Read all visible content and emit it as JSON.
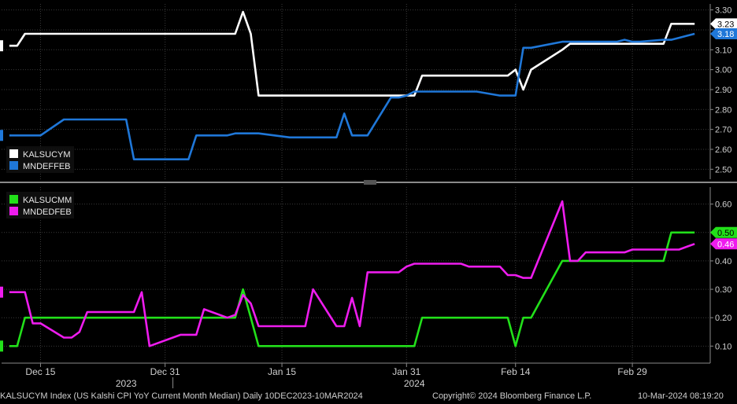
{
  "chart_data": [
    {
      "type": "line",
      "panel": "top",
      "x": [
        "2023-12-11",
        "2023-12-12",
        "2023-12-13",
        "2023-12-14",
        "2023-12-15",
        "2023-12-18",
        "2023-12-19",
        "2023-12-20",
        "2023-12-21",
        "2023-12-22",
        "2023-12-26",
        "2023-12-27",
        "2023-12-28",
        "2023-12-29",
        "2024-01-02",
        "2024-01-03",
        "2024-01-04",
        "2024-01-05",
        "2024-01-08",
        "2024-01-09",
        "2024-01-10",
        "2024-01-11",
        "2024-01-12",
        "2024-01-16",
        "2024-01-17",
        "2024-01-18",
        "2024-01-19",
        "2024-01-22",
        "2024-01-23",
        "2024-01-24",
        "2024-01-25",
        "2024-01-26",
        "2024-01-29",
        "2024-01-30",
        "2024-01-31",
        "2024-02-01",
        "2024-02-02",
        "2024-02-05",
        "2024-02-06",
        "2024-02-07",
        "2024-02-08",
        "2024-02-09",
        "2024-02-12",
        "2024-02-13",
        "2024-02-14",
        "2024-02-15",
        "2024-02-16",
        "2024-02-20",
        "2024-02-21",
        "2024-02-22",
        "2024-02-23",
        "2024-02-26",
        "2024-02-27",
        "2024-02-28",
        "2024-02-29",
        "2024-03-01",
        "2024-03-04",
        "2024-03-05",
        "2024-03-06",
        "2024-03-07",
        "2024-03-08"
      ],
      "series": [
        {
          "name": "KALSUCYM",
          "color": "#ffffff",
          "values": [
            3.12,
            3.12,
            3.18,
            3.18,
            3.18,
            3.18,
            3.18,
            3.18,
            3.18,
            3.18,
            3.18,
            3.18,
            3.18,
            3.18,
            3.18,
            3.18,
            3.18,
            3.18,
            3.18,
            3.18,
            3.29,
            3.18,
            2.87,
            2.87,
            2.87,
            2.87,
            2.87,
            2.87,
            2.87,
            2.87,
            2.87,
            2.87,
            2.87,
            2.87,
            2.87,
            2.87,
            2.97,
            2.97,
            2.97,
            2.97,
            2.97,
            2.97,
            2.97,
            2.97,
            3.0,
            2.9,
            3.0,
            3.1,
            3.13,
            3.13,
            3.13,
            3.13,
            3.13,
            3.13,
            3.13,
            3.13,
            3.13,
            3.23,
            3.23,
            3.23,
            3.23
          ]
        },
        {
          "name": "MNDEFFEB",
          "color": "#1f77d8",
          "values": [
            2.67,
            2.67,
            2.67,
            2.67,
            2.67,
            2.75,
            2.75,
            2.75,
            2.75,
            2.75,
            2.75,
            2.55,
            2.55,
            2.55,
            2.55,
            2.55,
            2.67,
            2.67,
            2.67,
            2.68,
            2.68,
            2.68,
            2.68,
            2.66,
            2.66,
            2.66,
            2.66,
            2.66,
            2.78,
            2.67,
            2.67,
            2.67,
            2.86,
            2.86,
            2.87,
            2.89,
            2.89,
            2.89,
            2.89,
            2.89,
            2.89,
            2.89,
            2.87,
            2.87,
            2.87,
            3.11,
            3.11,
            3.14,
            3.14,
            3.14,
            3.14,
            3.14,
            3.14,
            3.15,
            3.14,
            3.14,
            3.15,
            3.15,
            3.16,
            3.17,
            3.18
          ]
        }
      ],
      "last_values": [
        "3.23",
        "3.18"
      ],
      "ylim": [
        2.45,
        3.33
      ],
      "yticks": [
        "3.30",
        "3.20",
        "3.10",
        "3.00",
        "2.90",
        "2.80",
        "2.70",
        "2.60",
        "2.50"
      ],
      "legend": "bottom-left"
    },
    {
      "type": "line",
      "panel": "bottom",
      "x": [
        "2023-12-11",
        "2023-12-12",
        "2023-12-13",
        "2023-12-14",
        "2023-12-15",
        "2023-12-18",
        "2023-12-19",
        "2023-12-20",
        "2023-12-21",
        "2023-12-22",
        "2023-12-26",
        "2023-12-27",
        "2023-12-28",
        "2023-12-29",
        "2024-01-02",
        "2024-01-03",
        "2024-01-04",
        "2024-01-05",
        "2024-01-08",
        "2024-01-09",
        "2024-01-10",
        "2024-01-11",
        "2024-01-12",
        "2024-01-16",
        "2024-01-17",
        "2024-01-18",
        "2024-01-19",
        "2024-01-22",
        "2024-01-23",
        "2024-01-24",
        "2024-01-25",
        "2024-01-26",
        "2024-01-29",
        "2024-01-30",
        "2024-01-31",
        "2024-02-01",
        "2024-02-02",
        "2024-02-05",
        "2024-02-06",
        "2024-02-07",
        "2024-02-08",
        "2024-02-09",
        "2024-02-12",
        "2024-02-13",
        "2024-02-14",
        "2024-02-15",
        "2024-02-16",
        "2024-02-20",
        "2024-02-21",
        "2024-02-22",
        "2024-02-23",
        "2024-02-26",
        "2024-02-27",
        "2024-02-28",
        "2024-02-29",
        "2024-03-01",
        "2024-03-04",
        "2024-03-05",
        "2024-03-06",
        "2024-03-07",
        "2024-03-08"
      ],
      "series": [
        {
          "name": "KALSUCMM",
          "color": "#22e01a",
          "values": [
            0.1,
            0.1,
            0.2,
            0.2,
            0.2,
            0.2,
            0.2,
            0.2,
            0.2,
            0.2,
            0.2,
            0.2,
            0.2,
            0.2,
            0.2,
            0.2,
            0.2,
            0.2,
            0.2,
            0.2,
            0.3,
            0.2,
            0.1,
            0.1,
            0.1,
            0.1,
            0.1,
            0.1,
            0.1,
            0.1,
            0.1,
            0.1,
            0.1,
            0.1,
            0.1,
            0.1,
            0.2,
            0.2,
            0.2,
            0.2,
            0.2,
            0.2,
            0.2,
            0.2,
            0.1,
            0.2,
            0.2,
            0.4,
            0.4,
            0.4,
            0.4,
            0.4,
            0.4,
            0.4,
            0.4,
            0.4,
            0.4,
            0.5,
            0.5,
            0.5,
            0.5
          ]
        },
        {
          "name": "MNDEDFEB",
          "color": "#ee1cee",
          "values": [
            0.29,
            0.29,
            0.29,
            0.18,
            0.18,
            0.13,
            0.13,
            0.15,
            0.22,
            0.22,
            0.22,
            0.22,
            0.29,
            0.1,
            0.14,
            0.14,
            0.14,
            0.23,
            0.2,
            0.21,
            0.28,
            0.25,
            0.17,
            0.17,
            0.17,
            0.17,
            0.3,
            0.17,
            0.17,
            0.27,
            0.17,
            0.36,
            0.36,
            0.36,
            0.38,
            0.39,
            0.39,
            0.39,
            0.39,
            0.39,
            0.38,
            0.38,
            0.38,
            0.35,
            0.35,
            0.34,
            0.34,
            0.61,
            0.4,
            0.4,
            0.43,
            0.43,
            0.43,
            0.43,
            0.44,
            0.44,
            0.44,
            0.44,
            0.44,
            0.45,
            0.46
          ]
        }
      ],
      "last_values": [
        "0.50",
        "0.46"
      ],
      "ylim": [
        0.04,
        0.66
      ],
      "yticks": [
        "0.60",
        "0.50",
        "0.40",
        "0.30",
        "0.20",
        "0.10"
      ],
      "legend": "top-left"
    }
  ],
  "x_ticks": [
    {
      "date": "2023-12-15",
      "label": "Dec 15"
    },
    {
      "date": "2023-12-31",
      "label": "Dec 31"
    },
    {
      "date": "2024-01-15",
      "label": "Jan 15"
    },
    {
      "date": "2024-01-31",
      "label": "Jan 31"
    },
    {
      "date": "2024-02-14",
      "label": "Feb 14"
    },
    {
      "date": "2024-02-29",
      "label": "Feb 29"
    }
  ],
  "x_years": [
    {
      "date": "2023-12-26",
      "label": "2023"
    },
    {
      "date": "2024-02-01",
      "label": "2024"
    }
  ],
  "footer": {
    "description": "KALSUCYM Index (US Kalshi CPI YoY Current Month Median)  Daily 10DEC2023-10MAR2024",
    "copyright": "Copyright© 2024 Bloomberg Finance L.P.",
    "timestamp": "10-Mar-2024 08:19:20"
  },
  "colors": {
    "background": "#000000",
    "grid": "#3a3a3a",
    "axis": "#8a8a8a",
    "divider": "#8a8a8a"
  }
}
